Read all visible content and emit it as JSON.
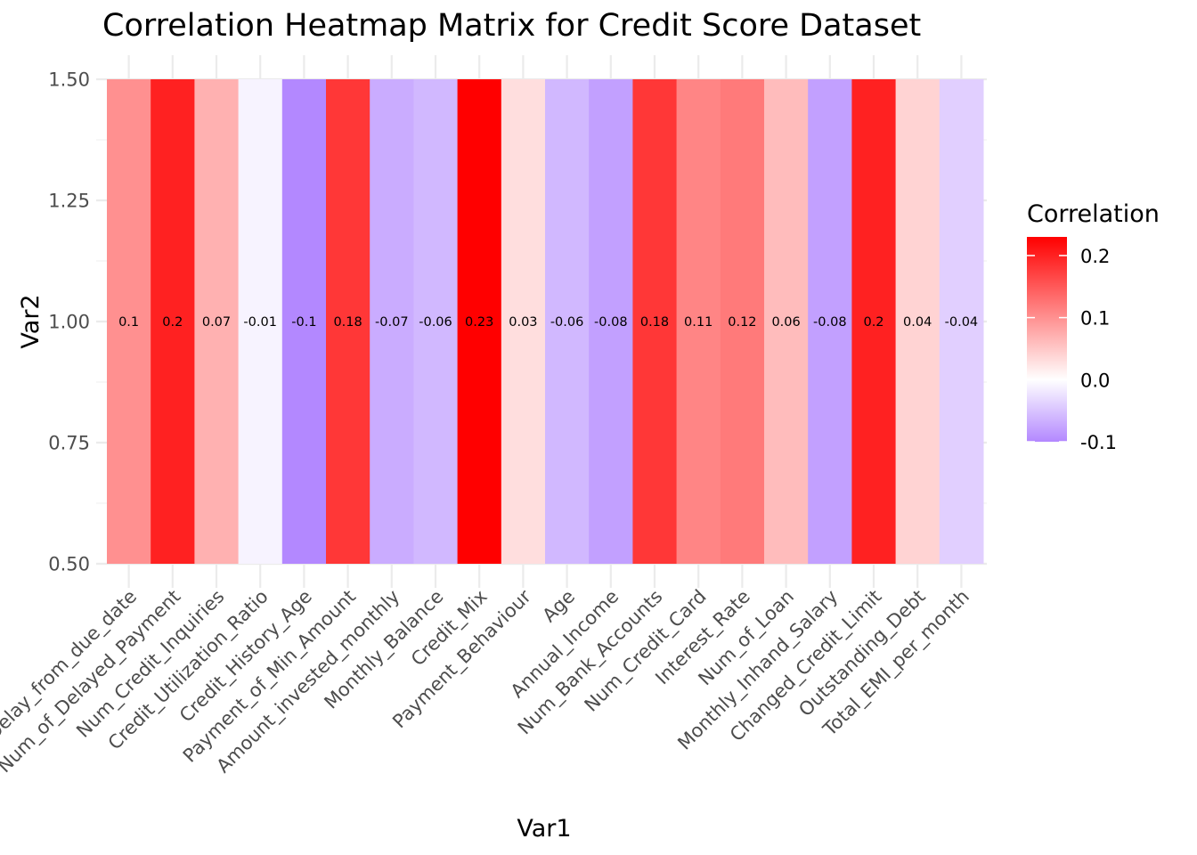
{
  "chart_data": {
    "type": "heatmap",
    "title": "Correlation Heatmap Matrix for Credit Score Dataset",
    "xlabel": "Var1",
    "ylabel": "Var2",
    "categories": [
      "Delay_from_due_date",
      "Num_of_Delayed_Payment",
      "Num_Credit_Inquiries",
      "Credit_Utilization_Ratio",
      "Credit_History_Age",
      "Payment_of_Min_Amount",
      "Amount_invested_monthly",
      "Monthly_Balance",
      "Credit_Mix",
      "Payment_Behaviour",
      "Age",
      "Annual_Income",
      "Num_Bank_Accounts",
      "Num_Credit_Card",
      "Interest_Rate",
      "Num_of_Loan",
      "Monthly_Inhand_Salary",
      "Changed_Credit_Limit",
      "Outstanding_Debt",
      "Total_EMI_per_month"
    ],
    "values": [
      0.1,
      0.2,
      0.07,
      -0.01,
      -0.1,
      0.18,
      -0.07,
      -0.06,
      0.23,
      0.03,
      -0.06,
      -0.08,
      0.18,
      0.11,
      0.12,
      0.06,
      -0.08,
      0.2,
      0.04,
      -0.04
    ],
    "value_labels": [
      "0.1",
      "0.2",
      "0.07",
      "-0.01",
      "-0.1",
      "0.18",
      "-0.07",
      "-0.06",
      "0.23",
      "0.03",
      "-0.06",
      "-0.08",
      "0.18",
      "0.11",
      "0.12",
      "0.06",
      "-0.08",
      "0.2",
      "0.04",
      "-0.04"
    ],
    "y_value": 1.0,
    "ylim": [
      0.5,
      1.5
    ],
    "yticks": [
      "0.50",
      "0.75",
      "1.00",
      "1.25",
      "1.50"
    ],
    "color_scale": {
      "low": "#b388ff",
      "mid": "#ffffff",
      "high": "#ff0000",
      "range": [
        -0.1,
        0.23
      ]
    },
    "legend": {
      "title": "Correlation",
      "labels": [
        "0.2",
        "0.1",
        "0.0",
        "-0.1"
      ],
      "placement": "right"
    },
    "grid": true
  }
}
